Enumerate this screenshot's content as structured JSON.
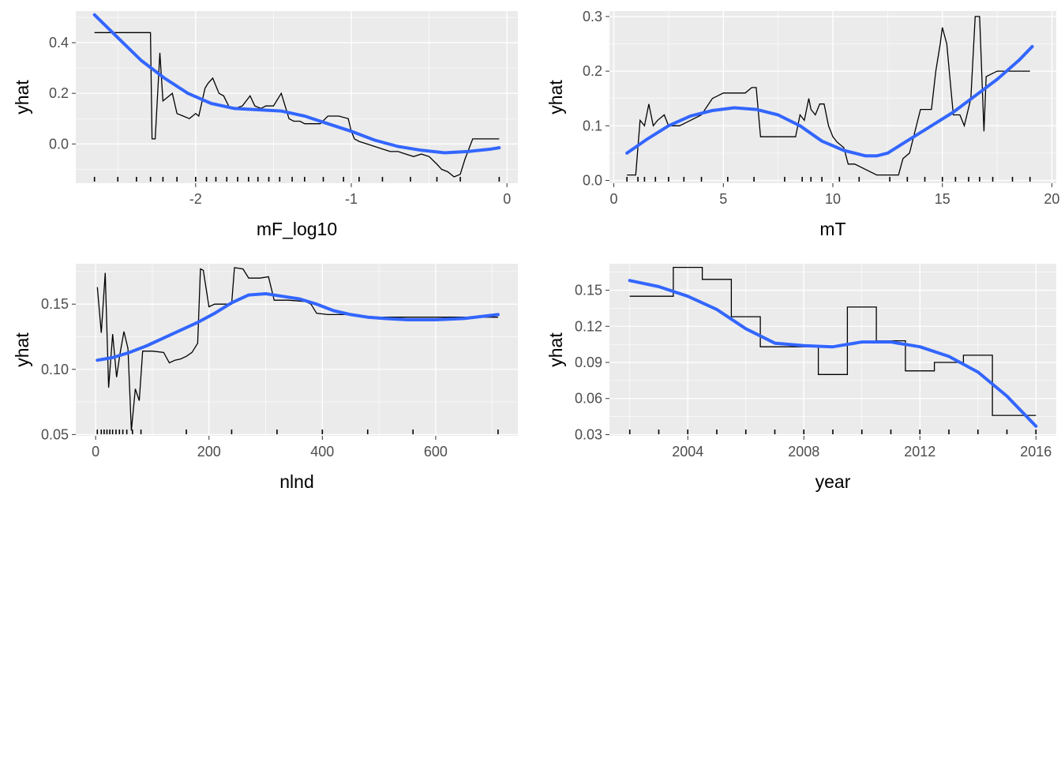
{
  "chart_data": [
    {
      "type": "line",
      "xlabel": "mF_log10",
      "ylabel": "yhat",
      "xlim": [
        -2.77,
        0.07
      ],
      "ylim": [
        -0.155,
        0.525
      ],
      "xticks": [
        -2,
        -1,
        0
      ],
      "xtick_labels": [
        "-2",
        "-1",
        "0"
      ],
      "yticks": [
        0.0,
        0.2,
        0.4
      ],
      "ytick_labels": [
        "0.0",
        "0.2",
        "0.4"
      ],
      "grid": true,
      "series": [
        {
          "style": "step-line",
          "color": "#000000",
          "x": [
            -2.65,
            -2.29,
            -2.28,
            -2.26,
            -2.23,
            -2.21,
            -2.19,
            -2.15,
            -2.12,
            -2.08,
            -2.04,
            -2.0,
            -1.98,
            -1.94,
            -1.92,
            -1.89,
            -1.85,
            -1.82,
            -1.78,
            -1.75,
            -1.7,
            -1.65,
            -1.62,
            -1.58,
            -1.55,
            -1.5,
            -1.45,
            -1.4,
            -1.37,
            -1.33,
            -1.3,
            -1.25,
            -1.2,
            -1.15,
            -1.12,
            -1.08,
            -1.02,
            -1.0,
            -0.98,
            -0.95,
            -0.9,
            -0.85,
            -0.8,
            -0.75,
            -0.7,
            -0.65,
            -0.6,
            -0.55,
            -0.5,
            -0.45,
            -0.42,
            -0.38,
            -0.34,
            -0.3,
            -0.27,
            -0.22,
            -0.18,
            -0.1,
            -0.05
          ],
          "y": [
            0.44,
            0.44,
            0.02,
            0.02,
            0.36,
            0.17,
            0.18,
            0.2,
            0.12,
            0.11,
            0.1,
            0.12,
            0.11,
            0.22,
            0.24,
            0.26,
            0.2,
            0.19,
            0.14,
            0.14,
            0.15,
            0.19,
            0.15,
            0.14,
            0.15,
            0.15,
            0.2,
            0.1,
            0.09,
            0.09,
            0.08,
            0.08,
            0.08,
            0.11,
            0.11,
            0.11,
            0.1,
            0.05,
            0.02,
            0.01,
            0.0,
            -0.01,
            -0.02,
            -0.03,
            -0.03,
            -0.04,
            -0.05,
            -0.04,
            -0.05,
            -0.08,
            -0.1,
            -0.11,
            -0.13,
            -0.12,
            -0.06,
            0.02,
            0.02,
            0.02,
            0.02
          ]
        },
        {
          "style": "smooth",
          "color": "#3366ff",
          "x": [
            -2.65,
            -2.5,
            -2.35,
            -2.2,
            -2.05,
            -1.9,
            -1.75,
            -1.6,
            -1.45,
            -1.3,
            -1.15,
            -1.0,
            -0.85,
            -0.7,
            -0.55,
            -0.4,
            -0.25,
            -0.1,
            -0.05
          ],
          "y": [
            0.51,
            0.42,
            0.33,
            0.26,
            0.2,
            0.16,
            0.14,
            0.135,
            0.13,
            0.11,
            0.08,
            0.05,
            0.015,
            -0.01,
            -0.025,
            -0.035,
            -0.03,
            -0.02,
            -0.015
          ]
        }
      ],
      "rug_x": [
        -2.65,
        -2.5,
        -2.38,
        -2.29,
        -2.21,
        -2.12,
        -2.0,
        -1.93,
        -1.87,
        -1.8,
        -1.73,
        -1.66,
        -1.6,
        -1.53,
        -1.46,
        -1.38,
        -1.3,
        -1.18,
        -1.05,
        -0.95,
        -0.8,
        -0.62,
        -0.45,
        -0.3,
        -0.05
      ]
    },
    {
      "type": "line",
      "xlabel": "mT",
      "ylabel": "yhat",
      "xlim": [
        -0.2,
        20.2
      ],
      "ylim": [
        -0.005,
        0.31
      ],
      "xticks": [
        0,
        5,
        10,
        15,
        20
      ],
      "xtick_labels": [
        "0",
        "5",
        "10",
        "15",
        "20"
      ],
      "yticks": [
        0.0,
        0.1,
        0.2,
        0.3
      ],
      "ytick_labels": [
        "0.0",
        "0.1",
        "0.2",
        "0.3"
      ],
      "grid": true,
      "series": [
        {
          "style": "step-line",
          "color": "#000000",
          "x": [
            0.6,
            1.0,
            1.2,
            1.4,
            1.6,
            1.8,
            2.0,
            2.3,
            2.5,
            3.0,
            3.5,
            4.0,
            4.5,
            5.0,
            6.0,
            6.3,
            6.5,
            6.7,
            7.0,
            8.0,
            8.3,
            8.5,
            8.7,
            8.9,
            9.0,
            9.2,
            9.4,
            9.6,
            9.8,
            10.0,
            10.2,
            10.5,
            10.7,
            11.0,
            11.5,
            12.0,
            12.5,
            13.0,
            13.2,
            13.5,
            14.0,
            14.5,
            14.7,
            14.9,
            15.0,
            15.2,
            15.5,
            15.8,
            16.0,
            16.3,
            16.5,
            16.7,
            16.9,
            17.0,
            17.5,
            18.0,
            18.5,
            19.0
          ],
          "y": [
            0.01,
            0.01,
            0.11,
            0.1,
            0.14,
            0.1,
            0.11,
            0.12,
            0.1,
            0.1,
            0.11,
            0.12,
            0.15,
            0.16,
            0.16,
            0.17,
            0.17,
            0.08,
            0.08,
            0.08,
            0.08,
            0.12,
            0.11,
            0.15,
            0.13,
            0.12,
            0.14,
            0.14,
            0.1,
            0.08,
            0.07,
            0.06,
            0.03,
            0.03,
            0.02,
            0.01,
            0.01,
            0.01,
            0.04,
            0.05,
            0.13,
            0.13,
            0.2,
            0.25,
            0.28,
            0.25,
            0.12,
            0.12,
            0.1,
            0.15,
            0.3,
            0.3,
            0.09,
            0.19,
            0.2,
            0.2,
            0.2,
            0.2
          ]
        },
        {
          "style": "smooth",
          "color": "#3366ff",
          "x": [
            0.6,
            1.5,
            2.5,
            3.5,
            4.5,
            5.5,
            6.5,
            7.5,
            8.5,
            9.5,
            10.5,
            11.5,
            12.0,
            12.5,
            13.5,
            14.5,
            15.5,
            16.5,
            17.5,
            18.5,
            19.1
          ],
          "y": [
            0.05,
            0.075,
            0.1,
            0.118,
            0.128,
            0.133,
            0.13,
            0.12,
            0.1,
            0.072,
            0.055,
            0.045,
            0.045,
            0.05,
            0.075,
            0.1,
            0.125,
            0.155,
            0.185,
            0.22,
            0.245
          ]
        }
      ],
      "rug_x": [
        0.6,
        1.1,
        1.4,
        1.9,
        2.5,
        3.2,
        4.0,
        5.2,
        6.4,
        7.8,
        8.6,
        9.0,
        9.5,
        10.3,
        11.2,
        12.6,
        13.4,
        14.2,
        15.0,
        15.6,
        16.2,
        16.7,
        17.3,
        18.2,
        19.0
      ]
    },
    {
      "type": "line",
      "xlabel": "nlnd",
      "ylabel": "yhat",
      "xlim": [
        -35,
        745
      ],
      "ylim": [
        0.049,
        0.181
      ],
      "xticks": [
        0,
        200,
        400,
        600
      ],
      "xtick_labels": [
        "0",
        "200",
        "400",
        "600"
      ],
      "yticks": [
        0.05,
        0.1,
        0.15
      ],
      "ytick_labels": [
        "0.05",
        "0.10",
        "0.15"
      ],
      "grid": true,
      "series": [
        {
          "style": "step-line",
          "color": "#000000",
          "x": [
            3,
            10,
            17,
            23,
            30,
            37,
            43,
            50,
            57,
            63,
            70,
            77,
            83,
            90,
            100,
            120,
            130,
            140,
            150,
            160,
            170,
            180,
            185,
            190,
            200,
            210,
            225,
            240,
            245,
            260,
            270,
            290,
            305,
            315,
            320,
            340,
            370,
            380,
            390,
            410,
            440,
            500,
            600,
            710
          ],
          "y": [
            0.163,
            0.128,
            0.174,
            0.086,
            0.127,
            0.094,
            0.112,
            0.129,
            0.116,
            0.053,
            0.085,
            0.076,
            0.114,
            0.114,
            0.114,
            0.113,
            0.105,
            0.107,
            0.108,
            0.11,
            0.113,
            0.12,
            0.177,
            0.176,
            0.148,
            0.15,
            0.15,
            0.15,
            0.178,
            0.177,
            0.17,
            0.17,
            0.171,
            0.153,
            0.153,
            0.153,
            0.152,
            0.15,
            0.143,
            0.142,
            0.142,
            0.14,
            0.14,
            0.14
          ]
        },
        {
          "style": "smooth",
          "color": "#3366ff",
          "x": [
            3,
            30,
            60,
            90,
            120,
            150,
            180,
            210,
            240,
            270,
            300,
            330,
            360,
            390,
            420,
            450,
            480,
            510,
            550,
            600,
            650,
            710
          ],
          "y": [
            0.107,
            0.109,
            0.113,
            0.118,
            0.124,
            0.13,
            0.136,
            0.143,
            0.151,
            0.157,
            0.158,
            0.156,
            0.154,
            0.15,
            0.145,
            0.142,
            0.14,
            0.139,
            0.138,
            0.138,
            0.139,
            0.142
          ]
        }
      ],
      "rug_x": [
        3,
        10,
        15,
        20,
        25,
        30,
        36,
        42,
        48,
        55,
        65,
        80,
        160,
        240,
        320,
        400,
        480,
        560,
        710
      ]
    },
    {
      "type": "line",
      "xlabel": "year",
      "ylabel": "yhat",
      "xlim": [
        2001.3,
        2016.7
      ],
      "ylim": [
        0.029,
        0.172
      ],
      "xticks": [
        2004,
        2008,
        2012,
        2016
      ],
      "xtick_labels": [
        "2004",
        "2008",
        "2012",
        "2016"
      ],
      "yticks": [
        0.03,
        0.06,
        0.09,
        0.12,
        0.15
      ],
      "ytick_labels": [
        "0.03",
        "0.06",
        "0.09",
        "0.12",
        "0.15"
      ],
      "grid": true,
      "series": [
        {
          "style": "step-line",
          "color": "#000000",
          "x": [
            2002.0,
            2003.5,
            2003.5,
            2004.5,
            2004.5,
            2005.5,
            2005.5,
            2006.5,
            2006.5,
            2008.5,
            2008.5,
            2009.5,
            2009.5,
            2010.5,
            2010.5,
            2011.5,
            2011.5,
            2012.5,
            2012.5,
            2013.5,
            2013.5,
            2014.5,
            2014.5,
            2016.0
          ],
          "y": [
            0.145,
            0.145,
            0.169,
            0.169,
            0.159,
            0.159,
            0.128,
            0.128,
            0.103,
            0.103,
            0.08,
            0.08,
            0.136,
            0.136,
            0.108,
            0.108,
            0.083,
            0.083,
            0.09,
            0.09,
            0.096,
            0.096,
            0.046,
            0.046
          ]
        },
        {
          "style": "smooth",
          "color": "#3366ff",
          "x": [
            2002.0,
            2003.0,
            2004.0,
            2005.0,
            2006.0,
            2007.0,
            2008.0,
            2009.0,
            2010.0,
            2011.0,
            2012.0,
            2013.0,
            2014.0,
            2015.0,
            2016.0
          ],
          "y": [
            0.158,
            0.153,
            0.145,
            0.134,
            0.118,
            0.106,
            0.104,
            0.103,
            0.107,
            0.107,
            0.103,
            0.095,
            0.082,
            0.062,
            0.037
          ]
        }
      ],
      "rug_x": [
        2002,
        2003,
        2004,
        2005,
        2006,
        2007,
        2008,
        2009,
        2010,
        2011,
        2012,
        2013,
        2014,
        2015,
        2016
      ]
    }
  ]
}
